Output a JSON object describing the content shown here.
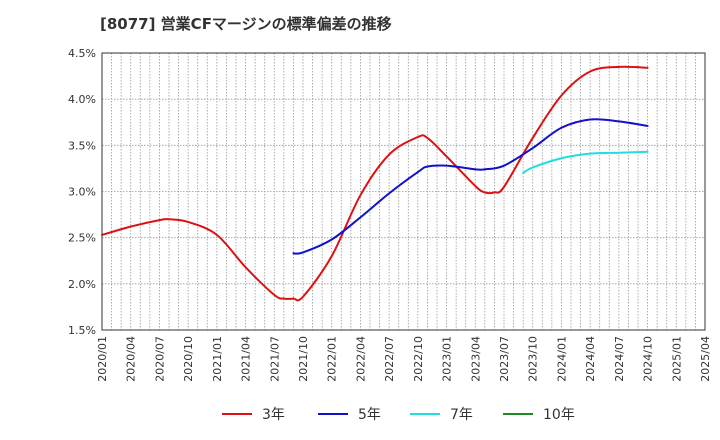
{
  "chart_data": {
    "type": "line",
    "title": "[8077]  営業CFマージンの標準偏差の推移",
    "xlabel": "",
    "ylabel": "",
    "ylim": [
      1.5,
      4.5
    ],
    "yticks": [
      "1.5%",
      "2.0%",
      "2.5%",
      "3.0%",
      "3.5%",
      "4.0%",
      "4.5%"
    ],
    "x_categories": [
      "2020/01",
      "2020/04",
      "2020/07",
      "2020/10",
      "2021/01",
      "2021/04",
      "2021/07",
      "2021/10",
      "2022/01",
      "2022/04",
      "2022/07",
      "2022/10",
      "2023/01",
      "2023/04",
      "2023/07",
      "2023/10",
      "2024/01",
      "2024/04",
      "2024/07",
      "2024/10",
      "2025/01",
      "2025/04"
    ],
    "grid": true,
    "legend_position": "bottom",
    "series": [
      {
        "name": "3年",
        "color": "#dd1111",
        "x": [
          "2020/01",
          "2020/04",
          "2020/07",
          "2020/08",
          "2020/10",
          "2021/01",
          "2021/04",
          "2021/07",
          "2021/08",
          "2021/09",
          "2021/10",
          "2022/01",
          "2022/04",
          "2022/07",
          "2022/10",
          "2022/11",
          "2023/01",
          "2023/04",
          "2023/05",
          "2023/06",
          "2023/07",
          "2023/10",
          "2024/01",
          "2024/04",
          "2024/07",
          "2024/10"
        ],
        "values": [
          2.53,
          2.62,
          2.69,
          2.7,
          2.67,
          2.53,
          2.18,
          1.88,
          1.84,
          1.84,
          1.86,
          2.3,
          2.96,
          3.4,
          3.59,
          3.58,
          3.38,
          3.06,
          2.99,
          2.99,
          3.05,
          3.58,
          4.04,
          4.3,
          4.35,
          4.34
        ]
      },
      {
        "name": "5年",
        "color": "#1111cc",
        "x": [
          "2021/09",
          "2021/10",
          "2022/01",
          "2022/04",
          "2022/07",
          "2022/10",
          "2022/11",
          "2023/01",
          "2023/04",
          "2023/05",
          "2023/07",
          "2023/10",
          "2024/01",
          "2024/04",
          "2024/07",
          "2024/10"
        ],
        "values": [
          2.33,
          2.34,
          2.48,
          2.72,
          2.98,
          3.21,
          3.27,
          3.28,
          3.24,
          3.24,
          3.28,
          3.47,
          3.69,
          3.78,
          3.76,
          3.71
        ]
      },
      {
        "name": "7年",
        "color": "#22dddd",
        "x": [
          "2023/09",
          "2023/10",
          "2024/01",
          "2024/04",
          "2024/07",
          "2024/10"
        ],
        "values": [
          3.2,
          3.26,
          3.36,
          3.41,
          3.42,
          3.43
        ]
      },
      {
        "name": "10年",
        "color": "#228822",
        "x": [],
        "values": []
      }
    ]
  }
}
